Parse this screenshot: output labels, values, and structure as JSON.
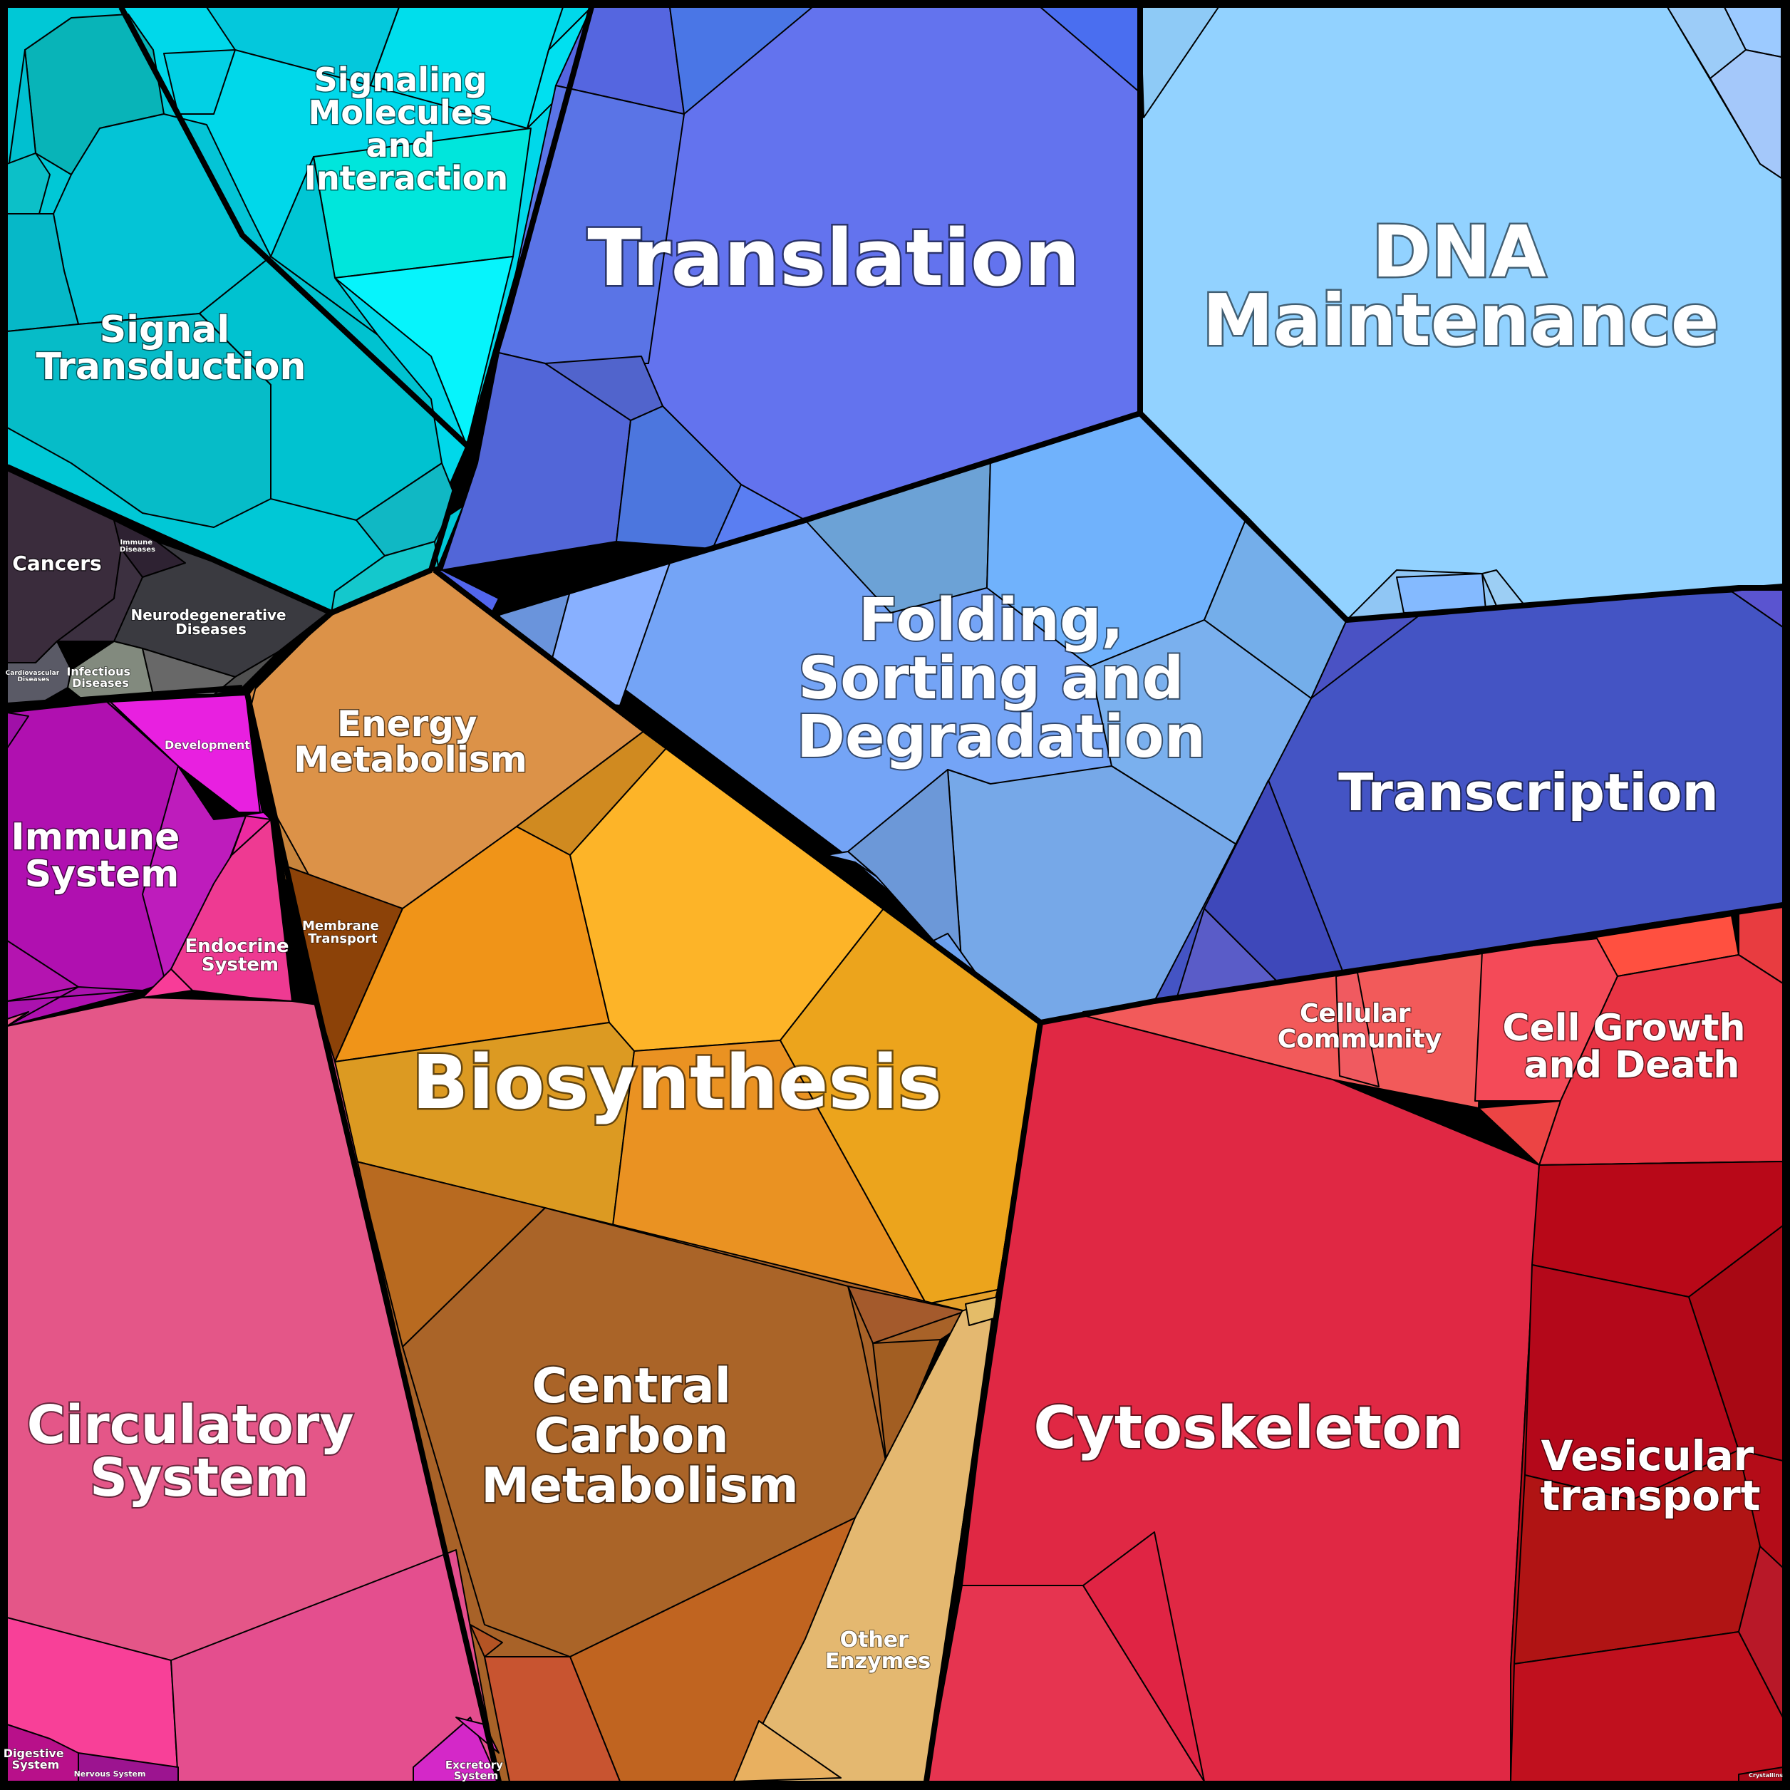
{
  "regions": [
    {
      "key": "signaling-molecules",
      "label": [
        "Signaling",
        "Molecules",
        "and",
        "Interaction"
      ],
      "color": "#00d8e8"
    },
    {
      "key": "signal-transduction",
      "label": [
        "Signal",
        "Transduction"
      ],
      "color": "#00c4d4"
    },
    {
      "key": "cancers",
      "label": [
        "Cancers"
      ],
      "color": "#3a2e3e"
    },
    {
      "key": "immune-diseases",
      "label": [
        "Immune",
        "Diseases"
      ],
      "color": "#3a2a33"
    },
    {
      "key": "neurodegenerative-diseases",
      "label": [
        "Neurodegenerative",
        "Diseases"
      ],
      "color": "#444444"
    },
    {
      "key": "cardiovascular-diseases",
      "label": [
        "Cardiovascular",
        "Diseases"
      ],
      "color": "#5a5a5a"
    },
    {
      "key": "infectious-diseases",
      "label": [
        "Infectious",
        "Diseases"
      ],
      "color": "#7a7a72"
    },
    {
      "key": "translation",
      "label": [
        "Translation"
      ],
      "color": "#6272ee"
    },
    {
      "key": "dna-maintenance",
      "label": [
        "DNA",
        "Maintenance"
      ],
      "color": "#92d2ff"
    },
    {
      "key": "folding-sorting-degradation",
      "label": [
        "Folding,",
        "Sorting and",
        "Degradation"
      ],
      "color": "#74a4f6"
    },
    {
      "key": "transcription",
      "label": [
        "Transcription"
      ],
      "color": "#4454c4"
    },
    {
      "key": "energy-metabolism",
      "label": [
        "Energy",
        "Metabolism"
      ],
      "color": "#dc9248"
    },
    {
      "key": "membrane-transport",
      "label": [
        "Membrane",
        "Transport"
      ],
      "color": "#8c4208"
    },
    {
      "key": "biosynthesis",
      "label": [
        "Biosynthesis"
      ],
      "color": "#f0a41a"
    },
    {
      "key": "central-carbon-metabolism",
      "label": [
        "Central",
        "Carbon",
        "Metabolism"
      ],
      "color": "#a86228"
    },
    {
      "key": "other-enzymes",
      "label": [
        "Other",
        "Enzymes"
      ],
      "color": "#e4b870"
    },
    {
      "key": "immune-system",
      "label": [
        "Immune",
        "System"
      ],
      "color": "#b010b0"
    },
    {
      "key": "development",
      "label": [
        "Development"
      ],
      "color": "#e820e0"
    },
    {
      "key": "endocrine-system",
      "label": [
        "Endocrine",
        "System"
      ],
      "color": "#e8309a"
    },
    {
      "key": "circulatory-system",
      "label": [
        "Circulatory",
        "System"
      ],
      "color": "#e45688"
    },
    {
      "key": "digestive-system",
      "label": [
        "Digestive",
        "System"
      ],
      "color": "#b8108a"
    },
    {
      "key": "nervous-system",
      "label": [
        "Nervous System"
      ],
      "color": "#9c1490"
    },
    {
      "key": "excretory-system",
      "label": [
        "Excretory",
        "System"
      ],
      "color": "#d428c8"
    },
    {
      "key": "cellular-community",
      "label": [
        "Cellular",
        "Community"
      ],
      "color": "#f25a5a"
    },
    {
      "key": "cell-growth-death",
      "label": [
        "Cell Growth",
        "and Death"
      ],
      "color": "#f03c46"
    },
    {
      "key": "cytoskeleton",
      "label": [
        "Cytoskeleton"
      ],
      "color": "#e02844"
    },
    {
      "key": "vesicular-transport",
      "label": [
        "Vesicular",
        "transport"
      ],
      "color": "#b40c18"
    },
    {
      "key": "crystallins",
      "label": [
        "Crystallins"
      ],
      "color": "#a80818"
    }
  ]
}
